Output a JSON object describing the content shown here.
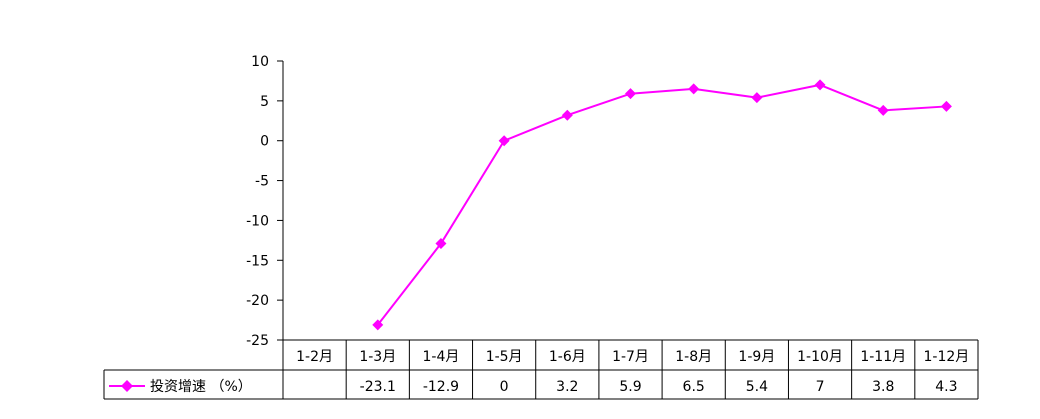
{
  "chart_data": {
    "type": "line",
    "title": "",
    "xlabel": "",
    "ylabel": "",
    "categories": [
      "1-2月",
      "1-3月",
      "1-4月",
      "1-5月",
      "1-6月",
      "1-7月",
      "1-8月",
      "1-9月",
      "1-10月",
      "1-11月",
      "1-12月"
    ],
    "ylim": [
      -25,
      10
    ],
    "yticks": [
      10,
      5,
      0,
      -5,
      -10,
      -15,
      -20,
      -25
    ],
    "series": [
      {
        "name": "投资增速 （%）",
        "color": "#ff00ff",
        "marker": "diamond",
        "values": [
          null,
          -23.1,
          -12.9,
          0,
          3.2,
          5.9,
          6.5,
          5.4,
          7,
          3.8,
          4.3
        ],
        "labels": [
          "",
          "-23.1",
          "-12.9",
          "0",
          "3.2",
          "5.9",
          "6.5",
          "5.4",
          "7",
          "3.8",
          "4.3"
        ]
      }
    ],
    "grid": false,
    "legend": "data-table"
  }
}
